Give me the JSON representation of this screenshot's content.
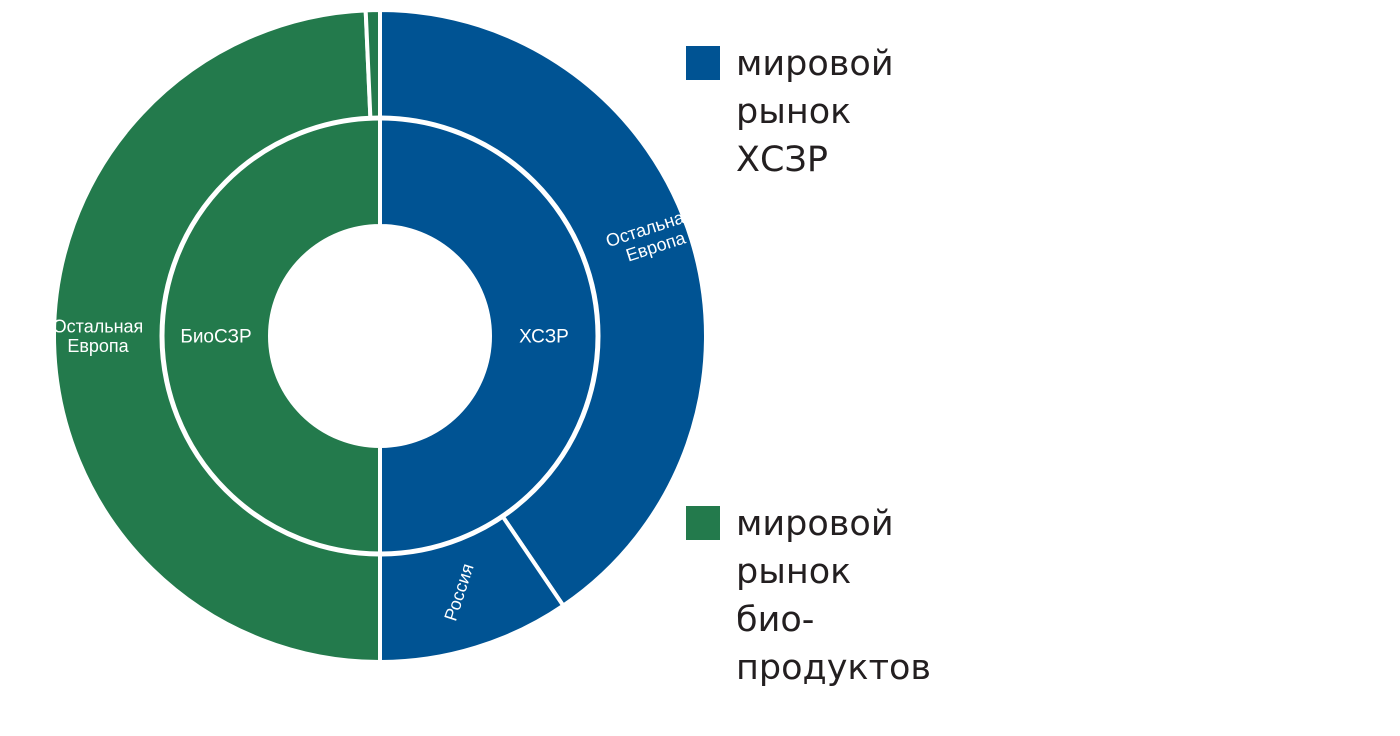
{
  "chart_data": {
    "type": "pie",
    "subtype": "nested-donut",
    "colors": {
      "chemical": "#005393",
      "bio": "#237a4c",
      "separator": "#ffffff"
    },
    "inner_ring": [
      {
        "label": "ХСЗР",
        "group": "chemical",
        "value": 50
      },
      {
        "label": "БиоСЗР",
        "group": "bio",
        "value": 50
      }
    ],
    "outer_ring": [
      {
        "label": "Остальная Европа",
        "group": "chemical",
        "value": 40.5
      },
      {
        "label": "Россия",
        "group": "chemical",
        "value": 9.5
      },
      {
        "label": "Остальная Европа",
        "group": "bio",
        "value": 49.3
      },
      {
        "label": "",
        "group": "bio",
        "value": 0.7
      }
    ],
    "legend": [
      {
        "label_lines": [
          "мировой",
          "рынок",
          "ХСЗР"
        ],
        "color": "#005393"
      },
      {
        "label_lines": [
          "мировой",
          "рынок",
          "био-",
          "продуктов"
        ],
        "color": "#237a4c"
      }
    ]
  }
}
